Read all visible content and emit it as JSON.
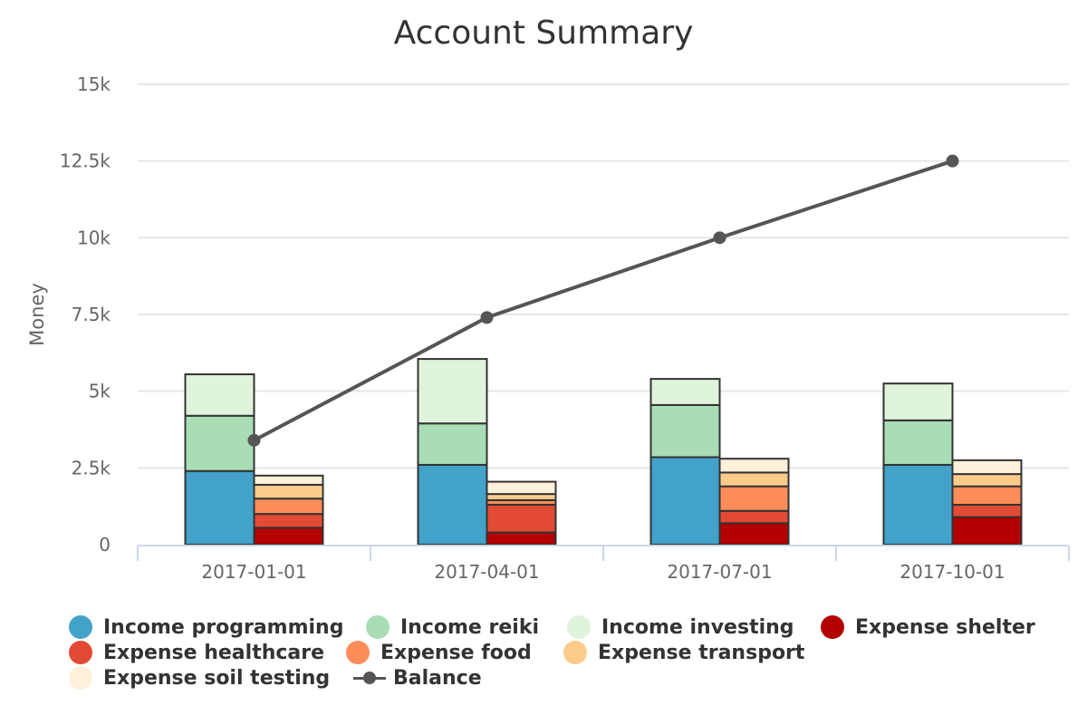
{
  "chart_data": {
    "type": "bar",
    "title": "Account Summary",
    "ylabel": "Money",
    "xlabel": "",
    "ylim": [
      0,
      15000
    ],
    "y_ticks": [
      {
        "value": 0,
        "label": "0"
      },
      {
        "value": 2500,
        "label": "2.5k"
      },
      {
        "value": 5000,
        "label": "5k"
      },
      {
        "value": 7500,
        "label": "7.5k"
      },
      {
        "value": 10000,
        "label": "10k"
      },
      {
        "value": 12500,
        "label": "12.5k"
      },
      {
        "value": 15000,
        "label": "15k"
      }
    ],
    "categories": [
      "2017-01-01",
      "2017-04-01",
      "2017-07-01",
      "2017-10-01"
    ],
    "grid": true,
    "legend_position": "bottom",
    "stacks": [
      {
        "stack": "income",
        "series": [
          {
            "name": "Income programming",
            "color": "#43a2ca",
            "values": [
              2400,
              2600,
              2850,
              2600
            ]
          },
          {
            "name": "Income reiki",
            "color": "#a8ddb5",
            "values": [
              1800,
              1350,
              1700,
              1450
            ]
          },
          {
            "name": "Income investing",
            "color": "#e0f3db",
            "values": [
              1350,
              2100,
              850,
              1200
            ]
          }
        ]
      },
      {
        "stack": "expense",
        "series": [
          {
            "name": "Expense shelter",
            "color": "#b30000",
            "values": [
              550,
              400,
              700,
              900
            ]
          },
          {
            "name": "Expense healthcare",
            "color": "#e34a33",
            "values": [
              450,
              900,
              400,
              400
            ]
          },
          {
            "name": "Expense food",
            "color": "#fc8d59",
            "values": [
              500,
              150,
              800,
              600
            ]
          },
          {
            "name": "Expense transport",
            "color": "#fdcc8a",
            "values": [
              450,
              200,
              450,
              400
            ]
          },
          {
            "name": "Expense soil testing",
            "color": "#fef0d9",
            "values": [
              300,
              400,
              450,
              450
            ]
          }
        ]
      }
    ],
    "line": {
      "name": "Balance",
      "color": "#555555",
      "values": [
        3400,
        7400,
        10000,
        12500
      ]
    }
  }
}
